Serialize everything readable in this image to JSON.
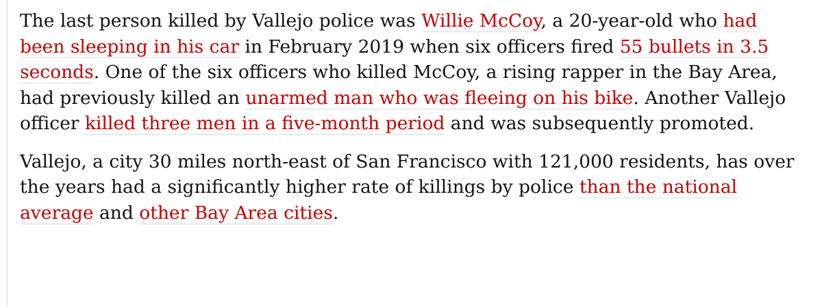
{
  "article": {
    "paragraphs": [
      {
        "segments": [
          {
            "text": "The last person killed by Vallejo police was ",
            "link": false
          },
          {
            "text": "Willie McCoy",
            "link": true
          },
          {
            "text": ", a 20-year-old who ",
            "link": false
          },
          {
            "text": "had been sleeping in his car",
            "link": true
          },
          {
            "text": " in February 2019 when six officers fired ",
            "link": false
          },
          {
            "text": "55 bullets in 3.5 seconds",
            "link": true
          },
          {
            "text": ". One of the six officers who killed McCoy, a rising rapper in the Bay Area, had previously killed an ",
            "link": false
          },
          {
            "text": "unarmed man who was fleeing on his bike",
            "link": true
          },
          {
            "text": ". Another Vallejo officer ",
            "link": false
          },
          {
            "text": "killed three men in a five-month period",
            "link": true
          },
          {
            "text": " and was subsequently promoted.",
            "link": false
          }
        ]
      },
      {
        "segments": [
          {
            "text": "Vallejo, a city 30 miles north-east of San Francisco with 121,000 residents, has over the years had a significantly higher rate of killings by police ",
            "link": false
          },
          {
            "text": "than the national average",
            "link": true
          },
          {
            "text": " and ",
            "link": false
          },
          {
            "text": "other Bay Area cities",
            "link": true
          },
          {
            "text": ".",
            "link": false
          }
        ]
      }
    ]
  },
  "colors": {
    "text": "#121212",
    "link": "#c70000",
    "link_underline": "#dcdcdc",
    "background": "#ffffff"
  }
}
